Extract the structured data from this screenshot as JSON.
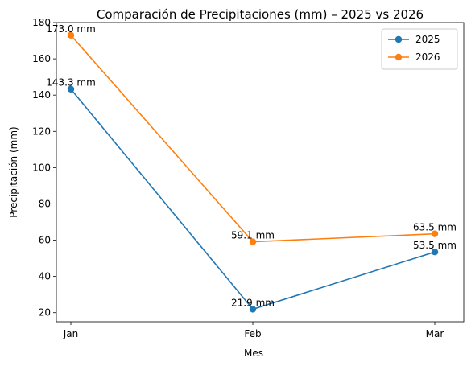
{
  "chart_data": {
    "type": "line",
    "title": "Comparación de Precipitaciones (mm) – 2025 vs 2026",
    "xlabel": "Mes",
    "ylabel": "Precipitación (mm)",
    "categories": [
      "Jan",
      "Feb",
      "Mar"
    ],
    "ylim": [
      15,
      180
    ],
    "yticks": [
      20,
      40,
      60,
      80,
      100,
      120,
      140,
      160,
      180
    ],
    "grid": false,
    "legend_position": "top-right",
    "series": [
      {
        "name": "2025",
        "color": "#1f77b4",
        "values": [
          143.3,
          21.9,
          53.5
        ],
        "labels": [
          "143.3 mm",
          "21.9 mm",
          "53.5 mm"
        ]
      },
      {
        "name": "2026",
        "color": "#ff7f0e",
        "values": [
          173.0,
          59.1,
          63.5
        ],
        "labels": [
          "173.0 mm",
          "59.1 mm",
          "63.5 mm"
        ]
      }
    ]
  }
}
